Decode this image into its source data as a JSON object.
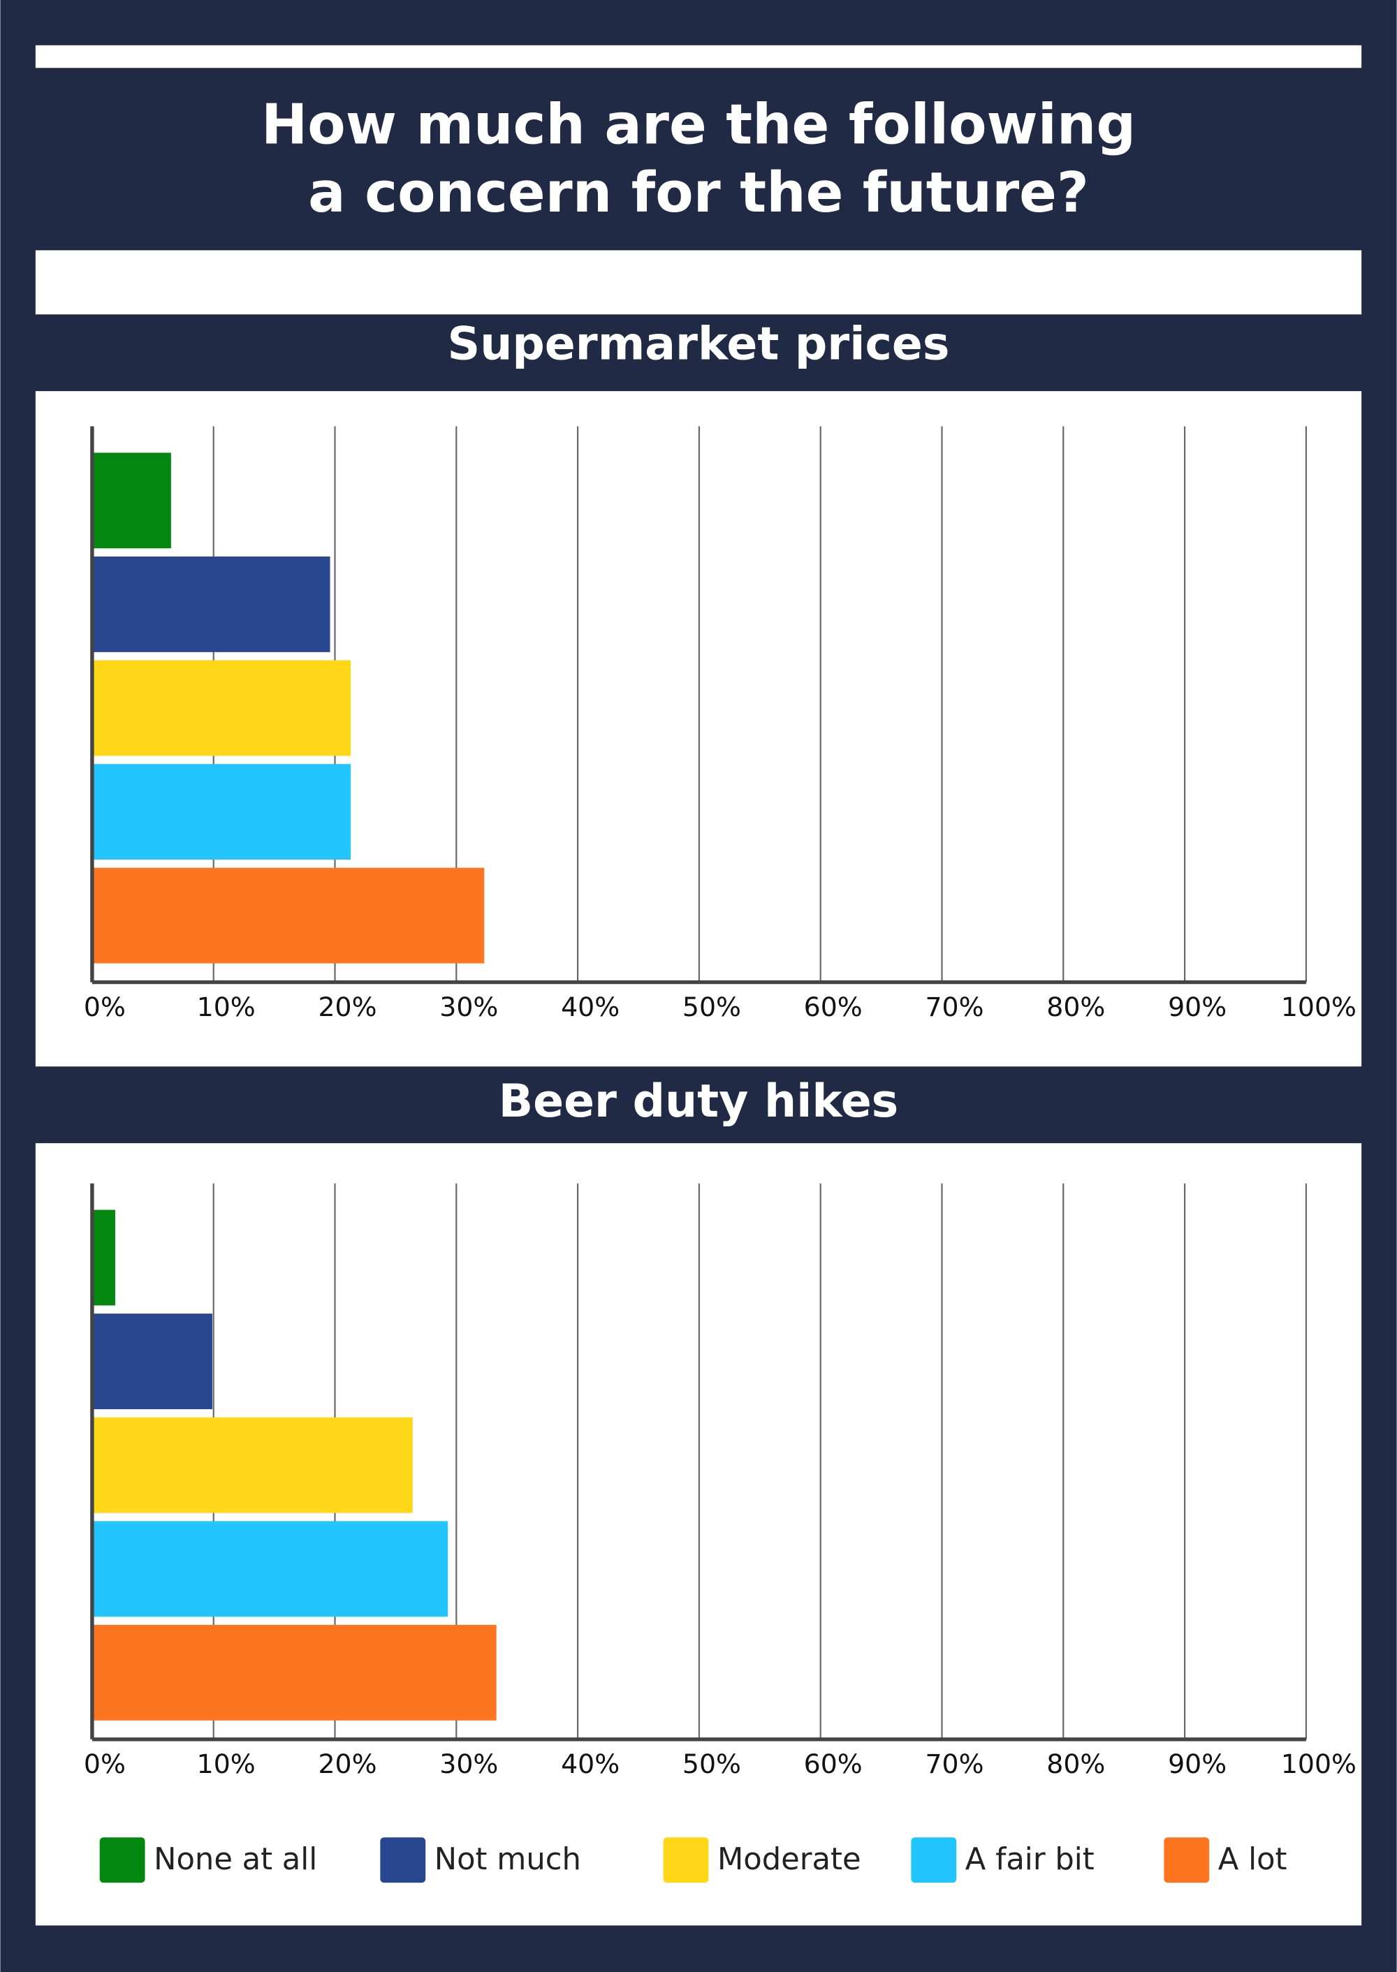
{
  "title": [
    "How much are the following",
    "a concern for the future?"
  ],
  "legend": [
    {
      "name": "None at all",
      "color": "#038711"
    },
    {
      "name": "Not much",
      "color": "#284790"
    },
    {
      "name": "Moderate",
      "color": "#fed718"
    },
    {
      "name": "A fair bit",
      "color": "#22c5fe"
    },
    {
      "name": "A lot",
      "color": "#fe7521"
    }
  ],
  "chart_data": [
    {
      "type": "bar",
      "orientation": "horizontal",
      "title": "Supermarket prices",
      "values": [
        6.5,
        19.6,
        21.3,
        21.3,
        32.3
      ],
      "xlim": [
        0,
        100
      ],
      "xticks": [
        {
          "value": 0,
          "label": "0%"
        },
        {
          "value": 10,
          "label": "10%"
        },
        {
          "value": 20,
          "label": "20%"
        },
        {
          "value": 30,
          "label": "30%"
        },
        {
          "value": 40,
          "label": "40%"
        },
        {
          "value": 50,
          "label": "50%"
        },
        {
          "value": 60,
          "label": "60%"
        },
        {
          "value": 70,
          "label": "70%"
        },
        {
          "value": 80,
          "label": "80%"
        },
        {
          "value": 90,
          "label": "90%"
        },
        {
          "value": 100,
          "label": "100%"
        }
      ],
      "grid": true
    },
    {
      "type": "bar",
      "orientation": "horizontal",
      "title": "Beer duty hikes",
      "values": [
        1.9,
        9.9,
        26.4,
        29.3,
        33.3
      ],
      "xlim": [
        0,
        100
      ],
      "xticks": [
        {
          "value": 0,
          "label": "0%"
        },
        {
          "value": 10,
          "label": "10%"
        },
        {
          "value": 20,
          "label": "20%"
        },
        {
          "value": 30,
          "label": "30%"
        },
        {
          "value": 40,
          "label": "40%"
        },
        {
          "value": 50,
          "label": "50%"
        },
        {
          "value": 60,
          "label": "60%"
        },
        {
          "value": 70,
          "label": "70%"
        },
        {
          "value": 80,
          "label": "80%"
        },
        {
          "value": 90,
          "label": "90%"
        },
        {
          "value": 100,
          "label": "100%"
        }
      ],
      "grid": true
    }
  ]
}
